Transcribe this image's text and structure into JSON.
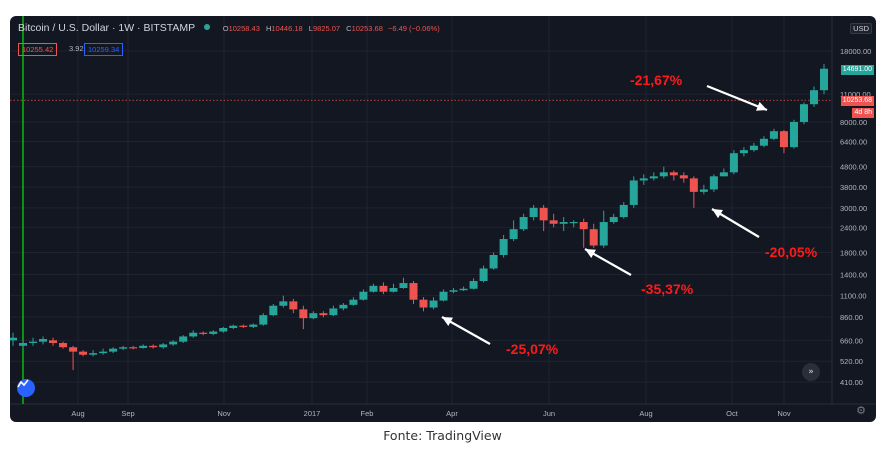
{
  "header": {
    "symbol": "Bitcoin / U.S. Dollar · 1W · BITSTAMP",
    "ohlc": {
      "o_label": "O",
      "o": "10258.43",
      "h_label": "H",
      "h": "10446.18",
      "l_label": "L",
      "l": "9825.07",
      "c_label": "C",
      "c": "10253.68",
      "change": "−6.49 (−0.06%)"
    }
  },
  "indicators": {
    "left_value": "10255.42",
    "mid_value": "3.92",
    "right_value": "10259.34"
  },
  "currency_button": "USD",
  "price_badges": {
    "top": "14691.00",
    "current": "10253.68",
    "countdown": "4d 8h"
  },
  "caption": "Fonte: TradingView",
  "colors": {
    "up": "#26a69a",
    "down": "#ef5350",
    "background": "#131722",
    "annotation": "#ff1a1a",
    "arrow": "#ffffff"
  },
  "chart_data": {
    "type": "candlestick",
    "scale": "log",
    "y_axis_labels": [
      "18000.00",
      "11000.00",
      "8000.00",
      "6400.00",
      "4800.00",
      "3800.00",
      "3000.00",
      "2400.00",
      "1800.00",
      "1400.00",
      "1100.00",
      "860.00",
      "660.00",
      "520.00",
      "410.00"
    ],
    "x_axis_labels": [
      "Aug",
      "Sep",
      "Nov",
      "2017",
      "Feb",
      "Apr",
      "Jun",
      "Aug",
      "Oct",
      "Nov"
    ],
    "annotations": [
      {
        "text": "-25,07%"
      },
      {
        "text": "-35,37%"
      },
      {
        "text": "-20,05%"
      },
      {
        "text": "-21,67%"
      }
    ],
    "candles": [
      [
        680,
        660,
        720,
        620
      ],
      [
        640,
        620,
        660,
        600
      ],
      [
        650,
        640,
        680,
        620
      ],
      [
        670,
        650,
        690,
        630
      ],
      [
        640,
        660,
        680,
        620
      ],
      [
        610,
        640,
        650,
        600
      ],
      [
        580,
        610,
        620,
        470
      ],
      [
        560,
        580,
        590,
        550
      ],
      [
        570,
        560,
        590,
        550
      ],
      [
        580,
        570,
        600,
        560
      ],
      [
        600,
        580,
        610,
        570
      ],
      [
        610,
        600,
        620,
        590
      ],
      [
        605,
        610,
        620,
        595
      ],
      [
        620,
        605,
        630,
        600
      ],
      [
        610,
        620,
        630,
        600
      ],
      [
        630,
        610,
        640,
        600
      ],
      [
        650,
        630,
        660,
        620
      ],
      [
        690,
        650,
        700,
        640
      ],
      [
        720,
        690,
        740,
        680
      ],
      [
        710,
        720,
        730,
        700
      ],
      [
        730,
        710,
        740,
        700
      ],
      [
        760,
        730,
        770,
        720
      ],
      [
        780,
        760,
        790,
        750
      ],
      [
        770,
        780,
        790,
        760
      ],
      [
        790,
        770,
        800,
        760
      ],
      [
        880,
        790,
        900,
        780
      ],
      [
        980,
        880,
        1000,
        870
      ],
      [
        1030,
        980,
        1100,
        960
      ],
      [
        940,
        1030,
        1060,
        900
      ],
      [
        850,
        940,
        980,
        750
      ],
      [
        900,
        850,
        920,
        840
      ],
      [
        880,
        900,
        920,
        860
      ],
      [
        950,
        880,
        980,
        870
      ],
      [
        990,
        950,
        1010,
        930
      ],
      [
        1050,
        990,
        1080,
        980
      ],
      [
        1150,
        1050,
        1180,
        1040
      ],
      [
        1230,
        1150,
        1260,
        1140
      ],
      [
        1150,
        1230,
        1280,
        1120
      ],
      [
        1200,
        1150,
        1260,
        1140
      ],
      [
        1270,
        1200,
        1350,
        1190
      ],
      [
        1050,
        1270,
        1300,
        1000
      ],
      [
        960,
        1050,
        1080,
        920
      ],
      [
        1040,
        960,
        1080,
        940
      ],
      [
        1150,
        1040,
        1180,
        1030
      ],
      [
        1170,
        1150,
        1200,
        1130
      ],
      [
        1190,
        1170,
        1220,
        1160
      ],
      [
        1300,
        1190,
        1340,
        1180
      ],
      [
        1500,
        1300,
        1550,
        1280
      ],
      [
        1750,
        1500,
        1800,
        1480
      ],
      [
        2100,
        1750,
        2200,
        1700
      ],
      [
        2350,
        2100,
        2600,
        2050
      ],
      [
        2700,
        2350,
        2800,
        2300
      ],
      [
        3000,
        2700,
        3100,
        2600
      ],
      [
        2600,
        3000,
        3100,
        2300
      ],
      [
        2500,
        2600,
        2800,
        2400
      ],
      [
        2550,
        2500,
        2700,
        2300
      ],
      [
        2550,
        2550,
        2600,
        2400
      ],
      [
        2350,
        2550,
        2650,
        1900
      ],
      [
        1950,
        2350,
        2500,
        1900
      ],
      [
        2550,
        1950,
        2900,
        1900
      ],
      [
        2700,
        2550,
        2800,
        2500
      ],
      [
        3100,
        2700,
        3200,
        2650
      ],
      [
        4100,
        3100,
        4300,
        3000
      ],
      [
        4200,
        4100,
        4400,
        3900
      ],
      [
        4300,
        4200,
        4500,
        4100
      ],
      [
        4500,
        4300,
        4800,
        4200
      ],
      [
        4350,
        4500,
        4600,
        4100
      ],
      [
        4200,
        4350,
        4500,
        4000
      ],
      [
        3600,
        4200,
        4300,
        3000
      ],
      [
        3700,
        3600,
        3900,
        3500
      ],
      [
        4300,
        3700,
        4400,
        3600
      ],
      [
        4500,
        4300,
        4700,
        4300
      ],
      [
        5600,
        4500,
        5800,
        4400
      ],
      [
        5800,
        5600,
        6000,
        5400
      ],
      [
        6100,
        5800,
        6300,
        5700
      ],
      [
        6600,
        6100,
        6800,
        6000
      ],
      [
        7200,
        6600,
        7400,
        6500
      ],
      [
        6000,
        7200,
        7300,
        5600
      ],
      [
        8000,
        6000,
        8200,
        5900
      ],
      [
        9800,
        8000,
        10000,
        7800
      ],
      [
        11500,
        9800,
        12000,
        9500
      ],
      [
        14700,
        11500,
        15500,
        11000
      ]
    ]
  }
}
